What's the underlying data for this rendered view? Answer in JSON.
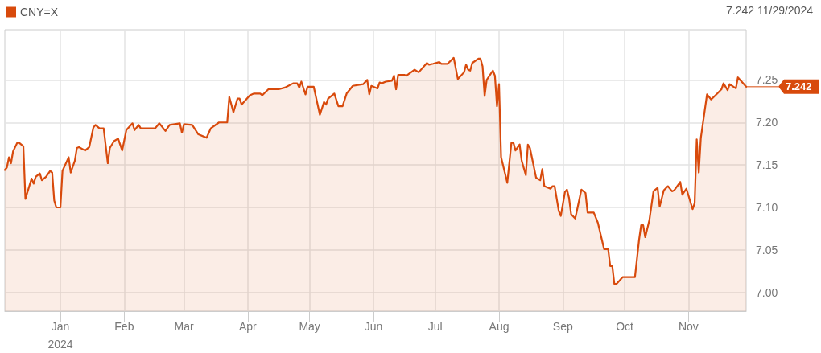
{
  "chart_data": {
    "type": "area",
    "legend": "top left",
    "grid": true,
    "marker": "none",
    "annotations": [
      "7.242 11/29/2024",
      "7.242"
    ],
    "xlim": [
      "2023-12-05",
      "2024-11-29"
    ],
    "xticks": [
      {
        "value": "2024-01-01",
        "label": "Jan\n2024"
      },
      {
        "value": "2024-02-01",
        "label": "Feb"
      },
      {
        "value": "2024-03-01",
        "label": "Mar"
      },
      {
        "value": "2024-04-01",
        "label": "Apr"
      },
      {
        "value": "2024-05-01",
        "label": "May"
      },
      {
        "value": "2024-06-01",
        "label": "Jun"
      },
      {
        "value": "2024-07-01",
        "label": "Jul"
      },
      {
        "value": "2024-08-01",
        "label": "Aug"
      },
      {
        "value": "2024-09-01",
        "label": "Sep"
      },
      {
        "value": "2024-10-01",
        "label": "Oct"
      },
      {
        "value": "2024-11-01",
        "label": "Nov"
      }
    ],
    "ylim": [
      6.978,
      7.309
    ],
    "yticks": [
      {
        "value": 7,
        "label": "7.00"
      },
      {
        "value": 7.05,
        "label": "7.05"
      },
      {
        "value": 7.1,
        "label": "7.10"
      },
      {
        "value": 7.15,
        "label": "7.15"
      },
      {
        "value": 7.2,
        "label": "7.20"
      },
      {
        "value": 7.25,
        "label": "7.25"
      }
    ],
    "series": [
      {
        "name": "CNY=X",
        "color": "#d84a0c",
        "x": [
          "2023-12-05",
          "2023-12-06",
          "2023-12-07",
          "2023-12-08",
          "2023-12-09",
          "2023-12-11",
          "2023-12-12",
          "2023-12-14",
          "2023-12-15",
          "2023-12-18",
          "2023-12-19",
          "2023-12-20",
          "2023-12-22",
          "2023-12-23",
          "2023-12-25",
          "2023-12-27",
          "2023-12-28",
          "2023-12-29",
          "2023-12-30",
          "2024-01-01",
          "2024-01-02",
          "2024-01-05",
          "2024-01-06",
          "2024-01-08",
          "2024-01-09",
          "2024-01-10",
          "2024-01-13",
          "2024-01-15",
          "2024-01-17",
          "2024-01-18",
          "2024-01-20",
          "2024-01-22",
          "2024-01-24",
          "2024-01-25",
          "2024-01-27",
          "2024-01-29",
          "2024-01-31",
          "2024-02-02",
          "2024-02-05",
          "2024-02-06",
          "2024-02-08",
          "2024-02-09",
          "2024-02-16",
          "2024-02-18",
          "2024-02-21",
          "2024-02-23",
          "2024-02-28",
          "2024-02-29",
          "2024-03-01",
          "2024-03-05",
          "2024-03-08",
          "2024-03-12",
          "2024-03-14",
          "2024-03-18",
          "2024-03-22",
          "2024-03-23",
          "2024-03-25",
          "2024-03-27",
          "2024-03-28",
          "2024-03-29",
          "2024-04-02",
          "2024-04-04",
          "2024-04-07",
          "2024-04-08",
          "2024-04-11",
          "2024-04-16",
          "2024-04-19",
          "2024-04-23",
          "2024-04-25",
          "2024-04-26",
          "2024-04-27",
          "2024-04-29",
          "2024-04-30",
          "2024-05-03",
          "2024-05-06",
          "2024-05-08",
          "2024-05-09",
          "2024-05-10",
          "2024-05-13",
          "2024-05-15",
          "2024-05-17",
          "2024-05-19",
          "2024-05-22",
          "2024-05-27",
          "2024-05-29",
          "2024-05-30",
          "2024-05-31",
          "2024-06-03",
          "2024-06-04",
          "2024-06-05",
          "2024-06-07",
          "2024-06-10",
          "2024-06-11",
          "2024-06-12",
          "2024-06-13",
          "2024-06-16",
          "2024-06-17",
          "2024-06-21",
          "2024-06-23",
          "2024-06-27",
          "2024-06-28",
          "2024-06-30",
          "2024-07-03",
          "2024-07-04",
          "2024-07-07",
          "2024-07-10",
          "2024-07-12",
          "2024-07-15",
          "2024-07-16",
          "2024-07-17",
          "2024-07-18",
          "2024-07-19",
          "2024-07-22",
          "2024-07-23",
          "2024-07-24",
          "2024-07-25",
          "2024-07-26",
          "2024-07-29",
          "2024-07-30",
          "2024-07-31",
          "2024-08-01",
          "2024-08-02",
          "2024-08-05",
          "2024-08-07",
          "2024-08-08",
          "2024-08-09",
          "2024-08-11",
          "2024-08-12",
          "2024-08-14",
          "2024-08-15",
          "2024-08-16",
          "2024-08-19",
          "2024-08-21",
          "2024-08-22",
          "2024-08-23",
          "2024-08-26",
          "2024-08-27",
          "2024-08-28",
          "2024-08-30",
          "2024-08-31",
          "2024-09-02",
          "2024-09-03",
          "2024-09-04",
          "2024-09-05",
          "2024-09-07",
          "2024-09-10",
          "2024-09-12",
          "2024-09-13",
          "2024-09-16",
          "2024-09-18",
          "2024-09-21",
          "2024-09-23",
          "2024-09-24",
          "2024-09-25",
          "2024-09-26",
          "2024-09-27",
          "2024-09-30",
          "2024-10-06",
          "2024-10-08",
          "2024-10-09",
          "2024-10-10",
          "2024-10-11",
          "2024-10-13",
          "2024-10-15",
          "2024-10-17",
          "2024-10-18",
          "2024-10-20",
          "2024-10-22",
          "2024-10-24",
          "2024-10-25",
          "2024-10-28",
          "2024-10-29",
          "2024-10-31",
          "2024-11-03",
          "2024-11-04",
          "2024-11-05",
          "2024-11-06",
          "2024-11-07",
          "2024-11-10",
          "2024-11-12",
          "2024-11-15",
          "2024-11-17",
          "2024-11-18",
          "2024-11-20",
          "2024-11-21",
          "2024-11-24",
          "2024-11-25",
          "2024-11-29"
        ],
        "values": [
          7.144,
          7.147,
          7.159,
          7.152,
          7.166,
          7.176,
          7.176,
          7.172,
          7.11,
          7.134,
          7.128,
          7.136,
          7.14,
          7.132,
          7.136,
          7.143,
          7.141,
          7.108,
          7.1,
          7.1,
          7.143,
          7.159,
          7.141,
          7.155,
          7.17,
          7.171,
          7.167,
          7.171,
          7.194,
          7.197,
          7.193,
          7.193,
          7.152,
          7.17,
          7.178,
          7.181,
          7.167,
          7.191,
          7.199,
          7.191,
          7.197,
          7.193,
          7.193,
          7.199,
          7.19,
          7.197,
          7.199,
          7.188,
          7.198,
          7.197,
          7.186,
          7.182,
          7.193,
          7.2,
          7.2,
          7.23,
          7.212,
          7.228,
          7.228,
          7.221,
          7.232,
          7.234,
          7.234,
          7.232,
          7.239,
          7.239,
          7.241,
          7.246,
          7.246,
          7.241,
          7.248,
          7.233,
          7.242,
          7.242,
          7.209,
          7.224,
          7.221,
          7.228,
          7.234,
          7.219,
          7.219,
          7.234,
          7.243,
          7.245,
          7.25,
          7.233,
          7.243,
          7.24,
          7.247,
          7.246,
          7.248,
          7.249,
          7.255,
          7.239,
          7.256,
          7.256,
          7.255,
          7.262,
          7.259,
          7.27,
          7.268,
          7.269,
          7.271,
          7.269,
          7.269,
          7.276,
          7.251,
          7.259,
          7.268,
          7.262,
          7.261,
          7.27,
          7.275,
          7.275,
          7.266,
          7.231,
          7.25,
          7.261,
          7.255,
          7.219,
          7.245,
          7.159,
          7.129,
          7.176,
          7.176,
          7.167,
          7.174,
          7.155,
          7.138,
          7.174,
          7.17,
          7.135,
          7.132,
          7.145,
          7.125,
          7.122,
          7.125,
          7.125,
          7.096,
          7.09,
          7.118,
          7.121,
          7.111,
          7.092,
          7.087,
          7.121,
          7.117,
          7.094,
          7.094,
          7.082,
          7.051,
          7.051,
          7.031,
          7.031,
          7.01,
          7.01,
          7.018,
          7.018,
          7.062,
          7.079,
          7.079,
          7.065,
          7.085,
          7.119,
          7.123,
          7.101,
          7.12,
          7.125,
          7.119,
          7.12,
          7.13,
          7.115,
          7.122,
          7.098,
          7.105,
          7.18,
          7.141,
          7.182,
          7.233,
          7.227,
          7.234,
          7.239,
          7.246,
          7.238,
          7.245,
          7.24,
          7.253,
          7.242
        ]
      }
    ]
  }
}
